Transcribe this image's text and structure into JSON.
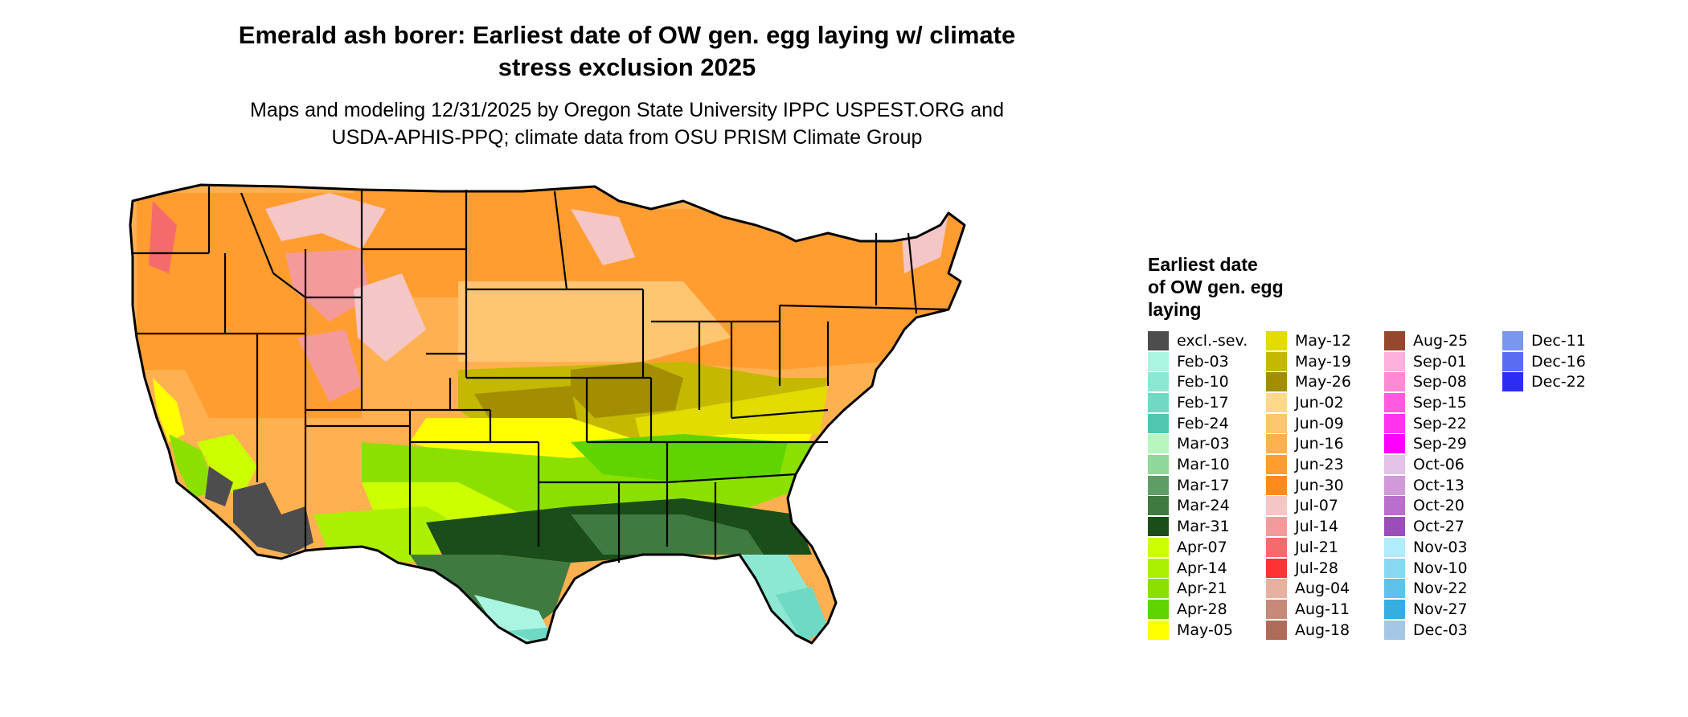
{
  "title": "Emerald ash borer: Earliest date of OW gen. egg laying w/ climate\nstress exclusion 2025",
  "subtitle": "Maps and modeling 12/31/2025 by Oregon State University IPPC USPEST.ORG and\nUSDA-APHIS-PPQ; climate data from OSU PRISM Climate Group",
  "legend": {
    "title": "Earliest date\nof OW gen. egg\nlaying",
    "items": [
      {
        "label": "excl.-sev.",
        "color": "#4d4d4d"
      },
      {
        "label": "Feb-03",
        "color": "#a9f5e1"
      },
      {
        "label": "Feb-10",
        "color": "#8de8d3"
      },
      {
        "label": "Feb-17",
        "color": "#6fd9c4"
      },
      {
        "label": "Feb-24",
        "color": "#4fc6b0"
      },
      {
        "label": "Mar-03",
        "color": "#b6f7c0"
      },
      {
        "label": "Mar-10",
        "color": "#8fd89a"
      },
      {
        "label": "Mar-17",
        "color": "#5e9e66"
      },
      {
        "label": "Mar-24",
        "color": "#3f7a41"
      },
      {
        "label": "Mar-31",
        "color": "#1a4d1a"
      },
      {
        "label": "Apr-07",
        "color": "#ccff00"
      },
      {
        "label": "Apr-14",
        "color": "#aaf000"
      },
      {
        "label": "Apr-21",
        "color": "#8be000"
      },
      {
        "label": "Apr-28",
        "color": "#5fd400"
      },
      {
        "label": "May-05",
        "color": "#ffff00"
      },
      {
        "label": "May-12",
        "color": "#e2dc00"
      },
      {
        "label": "May-19",
        "color": "#c4b800"
      },
      {
        "label": "May-26",
        "color": "#a28e00"
      },
      {
        "label": "Jun-02",
        "color": "#ffd98a"
      },
      {
        "label": "Jun-09",
        "color": "#ffc570"
      },
      {
        "label": "Jun-16",
        "color": "#ffb050"
      },
      {
        "label": "Jun-23",
        "color": "#ff9d30"
      },
      {
        "label": "Jun-30",
        "color": "#ff8a1a"
      },
      {
        "label": "Jul-07",
        "color": "#f5c6c6"
      },
      {
        "label": "Jul-14",
        "color": "#f59a9a"
      },
      {
        "label": "Jul-21",
        "color": "#f56a6a"
      },
      {
        "label": "Jul-28",
        "color": "#ff3333"
      },
      {
        "label": "Aug-04",
        "color": "#e8b0a0"
      },
      {
        "label": "Aug-11",
        "color": "#c88a78"
      },
      {
        "label": "Aug-18",
        "color": "#b06a5a"
      },
      {
        "label": "Aug-25",
        "color": "#94482e"
      },
      {
        "label": "Sep-01",
        "color": "#ffb0dc"
      },
      {
        "label": "Sep-08",
        "color": "#ff8ad4"
      },
      {
        "label": "Sep-15",
        "color": "#ff5ae0"
      },
      {
        "label": "Sep-22",
        "color": "#ff33ee"
      },
      {
        "label": "Sep-29",
        "color": "#ff00ff"
      },
      {
        "label": "Oct-06",
        "color": "#e3c3e6"
      },
      {
        "label": "Oct-13",
        "color": "#d09ad8"
      },
      {
        "label": "Oct-20",
        "color": "#b870cc"
      },
      {
        "label": "Oct-27",
        "color": "#9b4eb8"
      },
      {
        "label": "Nov-03",
        "color": "#b0ecfa"
      },
      {
        "label": "Nov-10",
        "color": "#88d8f2"
      },
      {
        "label": "Nov-22",
        "color": "#5ec2ea"
      },
      {
        "label": "Nov-27",
        "color": "#36aee0"
      },
      {
        "label": "Dec-03",
        "color": "#a6c6e6"
      },
      {
        "label": "Dec-11",
        "color": "#7b96ee"
      },
      {
        "label": "Dec-16",
        "color": "#5a6cf2"
      },
      {
        "label": "Dec-22",
        "color": "#2c2cf5"
      }
    ]
  }
}
